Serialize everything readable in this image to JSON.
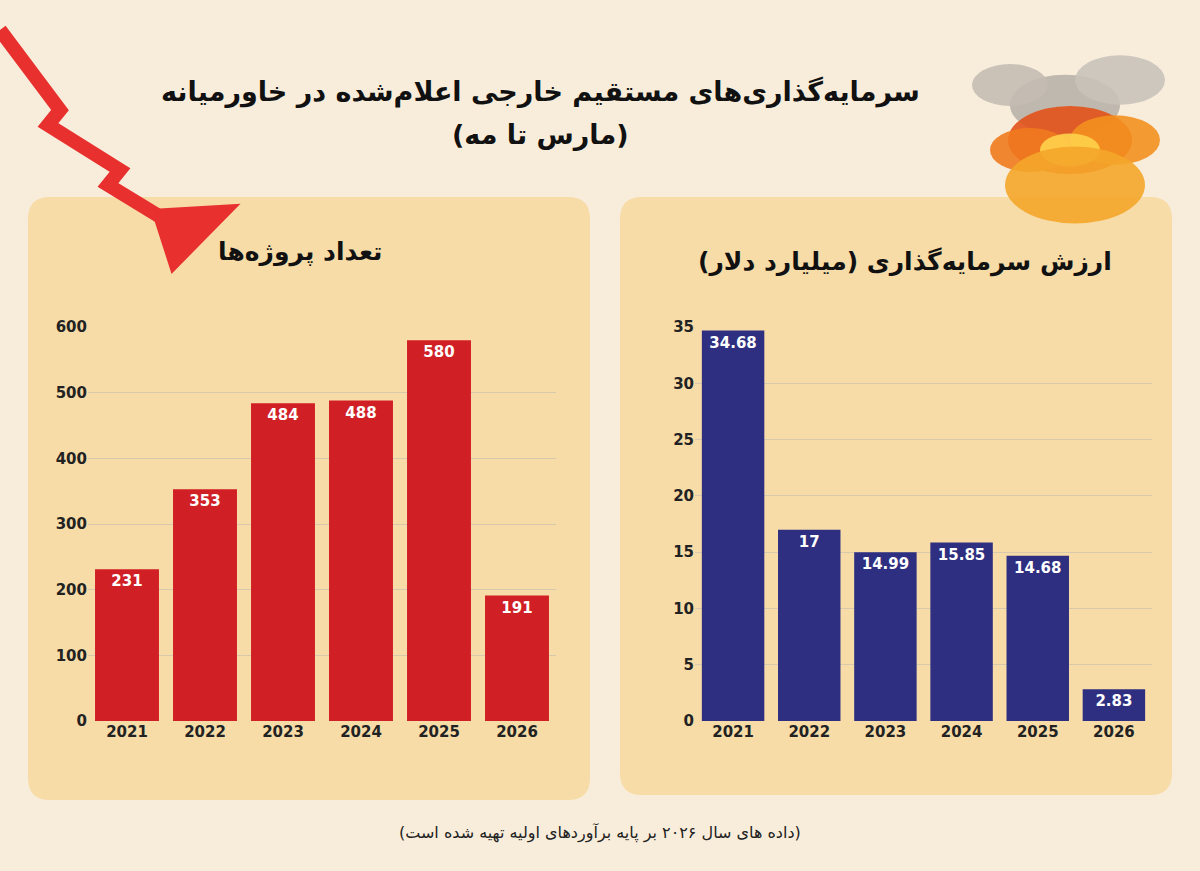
{
  "title": "سرمایه‌گذاری‌های مستقیم خارجی اعلام‌شده در خاورمیانه",
  "subtitle": "(مارس تا مه)",
  "note": "(داده های سال ۲۰۲۶ بر پایه برآوردهای اولیه تهیه شده است)",
  "chart_data": [
    {
      "type": "bar",
      "title": "تعداد پروژه‌ها",
      "categories": [
        "2021",
        "2022",
        "2023",
        "2024",
        "2025",
        "2026"
      ],
      "values": [
        231,
        353,
        484,
        488,
        580,
        191
      ],
      "color": "#d11f26",
      "ylim": [
        0,
        600
      ],
      "yticks": [
        0,
        100,
        200,
        300,
        400,
        500,
        600
      ],
      "grid": true,
      "data_labels": true
    },
    {
      "type": "bar",
      "title": "ارزش سرمایه‌گذاری (میلیارد دلار)",
      "categories": [
        "2021",
        "2022",
        "2023",
        "2024",
        "2025",
        "2026"
      ],
      "values": [
        34.68,
        17,
        14.99,
        15.85,
        14.68,
        2.83
      ],
      "color": "#2e2f80",
      "ylim": [
        0,
        35
      ],
      "yticks": [
        0,
        5,
        10,
        15,
        20,
        25,
        30,
        35
      ],
      "grid": true,
      "data_labels": true
    }
  ]
}
